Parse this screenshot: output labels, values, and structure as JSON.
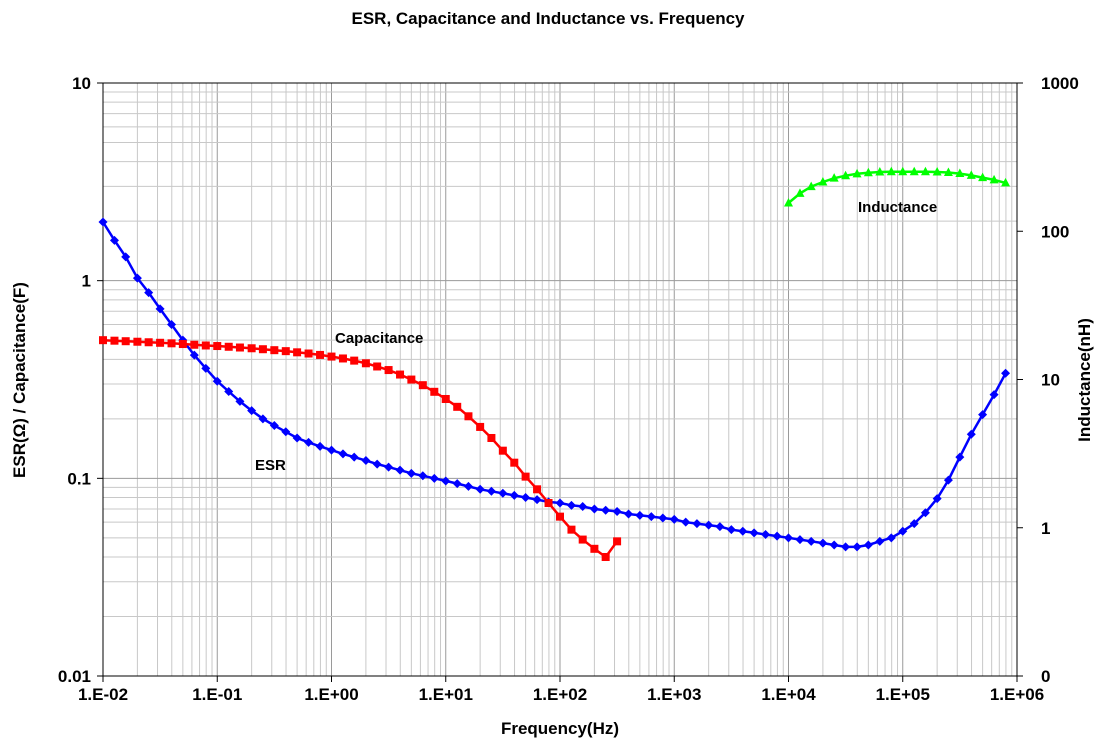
{
  "chart_data": {
    "type": "line",
    "title": "ESR, Capacitance and Inductance vs. Frequency",
    "xlabel": "Frequency(Hz)",
    "ylabel_left": "ESR(Ω) / Capacitance(F)",
    "ylabel_right": "Inductance(nH)",
    "x_scale": "log",
    "y_left_scale": "log",
    "y_right_scale": "log",
    "xlim": [
      0.01,
      1000000
    ],
    "ylim_left": [
      0.01,
      10
    ],
    "ylim_right": [
      0,
      1000
    ],
    "grid": true,
    "x_ticks": [
      {
        "value": 0.01,
        "label": "1.E-02"
      },
      {
        "value": 0.1,
        "label": "1.E-01"
      },
      {
        "value": 1,
        "label": "1.E+00"
      },
      {
        "value": 10,
        "label": "1.E+01"
      },
      {
        "value": 100,
        "label": "1.E+02"
      },
      {
        "value": 1000,
        "label": "1.E+03"
      },
      {
        "value": 10000,
        "label": "1.E+04"
      },
      {
        "value": 100000,
        "label": "1.E+05"
      },
      {
        "value": 1000000,
        "label": "1.E+06"
      }
    ],
    "y_left_ticks": [
      {
        "value": 10,
        "label": "10"
      },
      {
        "value": 1,
        "label": "1"
      },
      {
        "value": 0.1,
        "label": "0.1"
      },
      {
        "value": 0.01,
        "label": "0.01"
      }
    ],
    "y_right_ticks": [
      {
        "value": 1000,
        "label": "1000"
      },
      {
        "value": 100,
        "label": "100"
      },
      {
        "value": 10,
        "label": "10"
      },
      {
        "value": 1,
        "label": "1"
      },
      {
        "value": 0.1,
        "label": "0"
      }
    ],
    "series": [
      {
        "name": "ESR",
        "axis": "left",
        "color": "#0000ff",
        "marker": "diamond",
        "x": [
          0.01,
          0.0126,
          0.0158,
          0.02,
          0.0251,
          0.0316,
          0.0398,
          0.05,
          0.063,
          0.0794,
          0.1,
          0.126,
          0.158,
          0.2,
          0.251,
          0.316,
          0.398,
          0.5,
          0.63,
          0.794,
          1,
          1.26,
          1.58,
          2,
          2.51,
          3.16,
          3.98,
          5,
          6.3,
          7.94,
          10,
          12.6,
          15.8,
          20,
          25.1,
          31.6,
          39.8,
          50,
          63,
          79.4,
          100,
          126,
          158,
          200,
          251,
          316,
          398,
          500,
          630,
          794,
          1000,
          1260,
          1580,
          2000,
          2510,
          3160,
          3980,
          5000,
          6300,
          7940,
          10000,
          12600,
          15800,
          20000,
          25100,
          31600,
          39800,
          50000,
          63000,
          79400,
          100000,
          126000,
          158000,
          200000,
          251000,
          316000,
          398000,
          500000,
          630000,
          794000
        ],
        "y": [
          1.98,
          1.6,
          1.32,
          1.03,
          0.87,
          0.72,
          0.6,
          0.5,
          0.42,
          0.36,
          0.31,
          0.275,
          0.245,
          0.22,
          0.2,
          0.185,
          0.172,
          0.16,
          0.152,
          0.145,
          0.139,
          0.133,
          0.128,
          0.123,
          0.118,
          0.114,
          0.11,
          0.106,
          0.103,
          0.1,
          0.097,
          0.094,
          0.091,
          0.088,
          0.086,
          0.084,
          0.082,
          0.08,
          0.078,
          0.076,
          0.075,
          0.073,
          0.072,
          0.07,
          0.069,
          0.068,
          0.066,
          0.065,
          0.064,
          0.063,
          0.062,
          0.06,
          0.059,
          0.058,
          0.057,
          0.055,
          0.054,
          0.053,
          0.052,
          0.051,
          0.05,
          0.049,
          0.048,
          0.047,
          0.046,
          0.045,
          0.045,
          0.046,
          0.048,
          0.05,
          0.054,
          0.059,
          0.067,
          0.079,
          0.098,
          0.128,
          0.167,
          0.21,
          0.265,
          0.34
        ]
      },
      {
        "name": "Capacitance",
        "axis": "left",
        "color": "#ff0000",
        "marker": "square",
        "x": [
          0.01,
          0.0126,
          0.0158,
          0.02,
          0.0251,
          0.0316,
          0.0398,
          0.05,
          0.063,
          0.0794,
          0.1,
          0.126,
          0.158,
          0.2,
          0.251,
          0.316,
          0.398,
          0.5,
          0.63,
          0.794,
          1,
          1.26,
          1.58,
          2,
          2.51,
          3.16,
          3.98,
          5,
          6.3,
          7.94,
          10,
          12.6,
          15.8,
          20,
          25.1,
          31.6,
          39.8,
          50,
          63,
          79.4,
          100,
          126,
          158,
          200,
          251,
          316
        ],
        "y": [
          0.5,
          0.497,
          0.494,
          0.491,
          0.488,
          0.485,
          0.482,
          0.478,
          0.474,
          0.47,
          0.467,
          0.463,
          0.459,
          0.455,
          0.45,
          0.445,
          0.44,
          0.434,
          0.428,
          0.421,
          0.413,
          0.404,
          0.394,
          0.382,
          0.368,
          0.353,
          0.335,
          0.316,
          0.296,
          0.274,
          0.252,
          0.23,
          0.206,
          0.182,
          0.16,
          0.138,
          0.12,
          0.102,
          0.088,
          0.075,
          0.064,
          0.055,
          0.049,
          0.044,
          0.04,
          0.048
        ]
      },
      {
        "name": "Inductance",
        "axis": "right",
        "color": "#00ff00",
        "marker": "triangle",
        "x": [
          10000,
          12600,
          15800,
          20000,
          25100,
          31600,
          39800,
          50000,
          63000,
          79400,
          100000,
          126000,
          158000,
          200000,
          251000,
          316000,
          398000,
          500000,
          630000,
          794000
        ],
        "y": [
          155,
          180,
          200,
          215,
          228,
          237,
          244,
          248,
          251,
          252,
          252,
          252,
          252,
          251,
          249,
          245,
          238,
          230,
          222,
          212
        ]
      }
    ],
    "annotations": [
      {
        "text": "Capacitance",
        "series": "Capacitance"
      },
      {
        "text": "ESR",
        "series": "ESR"
      },
      {
        "text": "Inductance",
        "series": "Inductance"
      }
    ]
  }
}
